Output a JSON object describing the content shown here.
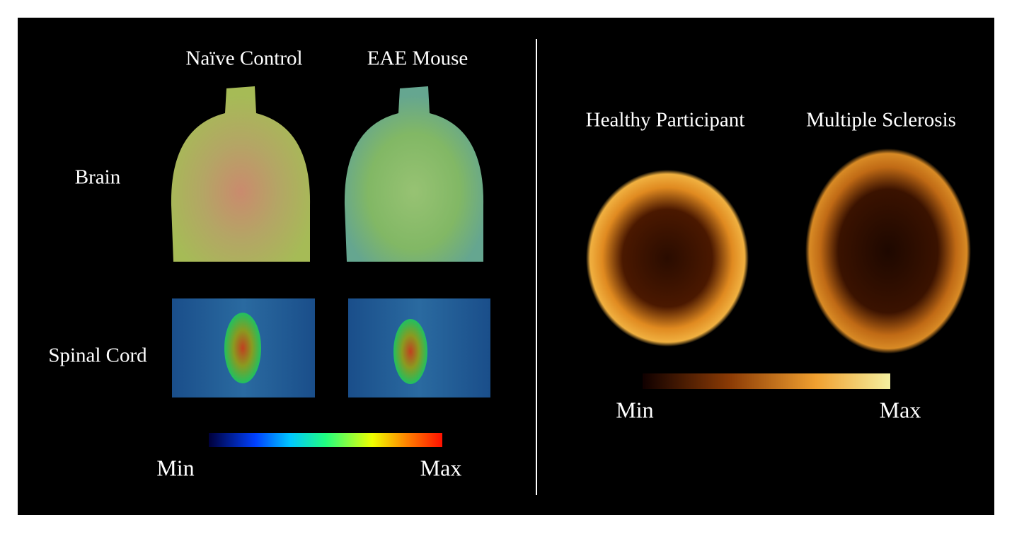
{
  "left_panel": {
    "column_labels": [
      "Naïve Control",
      "EAE Mouse"
    ],
    "row_labels": [
      "Brain",
      "Spinal Cord"
    ],
    "colorbar": {
      "min_label": "Min",
      "max_label": "Max"
    }
  },
  "right_panel": {
    "column_labels": [
      "Healthy Participant",
      "Multiple Sclerosis"
    ],
    "colorbar": {
      "min_label": "Min",
      "max_label": "Max"
    }
  }
}
